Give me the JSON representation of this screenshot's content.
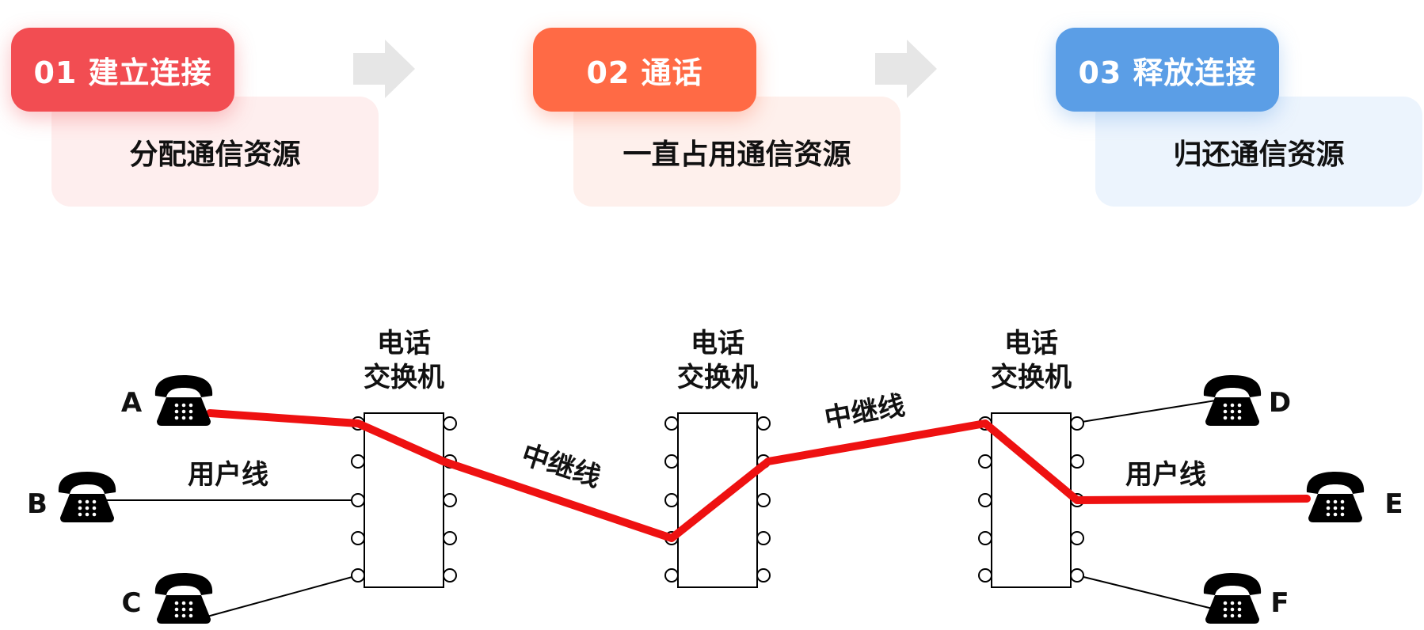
{
  "steps": [
    {
      "label": "01 建立连接",
      "desc": "分配通信资源",
      "pill_color": "#f24d52",
      "box_color": "#feeeee"
    },
    {
      "label": "02 通话",
      "desc": "一直占用通信资源",
      "pill_color": "#ff6a45",
      "box_color": "#fef0ec"
    },
    {
      "label": "03 释放连接",
      "desc": "归还通信资源",
      "pill_color": "#5b9ee6",
      "box_color": "#ecf4fd"
    }
  ],
  "arrow_color": "#e6e6e6",
  "switches": [
    {
      "line1": "电话",
      "line2": "交换机"
    },
    {
      "line1": "电话",
      "line2": "交换机"
    },
    {
      "line1": "电话",
      "line2": "交换机"
    }
  ],
  "phones": {
    "a": "A",
    "b": "B",
    "c": "C",
    "d": "D",
    "e": "E",
    "f": "F"
  },
  "labels": {
    "user_line_left": "用户线",
    "trunk_left": "中继线",
    "trunk_right": "中继线",
    "user_line_right": "用户线"
  },
  "path_color": "#ee1111",
  "icons": [
    "telephone-icon",
    "arrow-right-icon"
  ]
}
